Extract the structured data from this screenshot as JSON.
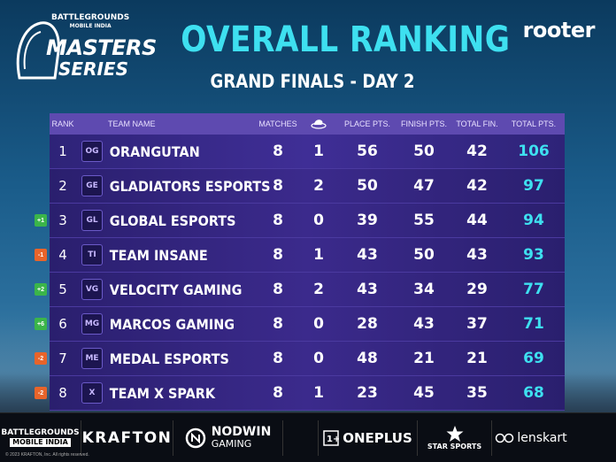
{
  "logo": {
    "brand_line1": "BATTLEGROUNDS",
    "brand_line2": "MOBILE INDIA",
    "masters": "MASTERS",
    "series": "SERIES"
  },
  "header": {
    "title": "OVERALL RANKING",
    "subtitle": "GRAND FINALS - DAY 2",
    "partner": "rooter"
  },
  "table": {
    "columns": {
      "rank": "RANK",
      "team": "TEAM NAME",
      "matches": "MATCHES",
      "chicken_icon": "chicken-dinner-icon",
      "place": "PLACE PTS.",
      "finish": "FINISH PTS.",
      "total_fin": "TOTAL FIN.",
      "total": "TOTAL PTS."
    },
    "rows": [
      {
        "rank": "1",
        "team": "ORANGUTAN",
        "logo": "OG",
        "change": "",
        "matches": "8",
        "wins": "1",
        "place": "56",
        "finish": "50",
        "total_fin": "42",
        "total": "106"
      },
      {
        "rank": "2",
        "team": "GLADIATORS ESPORTS",
        "logo": "GE",
        "change": "",
        "matches": "8",
        "wins": "2",
        "place": "50",
        "finish": "47",
        "total_fin": "42",
        "total": "97"
      },
      {
        "rank": "3",
        "team": "GLOBAL ESPORTS",
        "logo": "GL",
        "change": "+1",
        "matches": "8",
        "wins": "0",
        "place": "39",
        "finish": "55",
        "total_fin": "44",
        "total": "94"
      },
      {
        "rank": "4",
        "team": "TEAM INSANE",
        "logo": "TI",
        "change": "-1",
        "matches": "8",
        "wins": "1",
        "place": "43",
        "finish": "50",
        "total_fin": "43",
        "total": "93"
      },
      {
        "rank": "5",
        "team": "VELOCITY GAMING",
        "logo": "VG",
        "change": "+2",
        "matches": "8",
        "wins": "2",
        "place": "43",
        "finish": "34",
        "total_fin": "29",
        "total": "77"
      },
      {
        "rank": "6",
        "team": "MARCOS GAMING",
        "logo": "MG",
        "change": "+6",
        "matches": "8",
        "wins": "0",
        "place": "28",
        "finish": "43",
        "total_fin": "37",
        "total": "71"
      },
      {
        "rank": "7",
        "team": "MEDAL ESPORTS",
        "logo": "ME",
        "change": "-2",
        "matches": "8",
        "wins": "0",
        "place": "48",
        "finish": "21",
        "total_fin": "21",
        "total": "69"
      },
      {
        "rank": "8",
        "team": "TEAM X SPARK",
        "logo": "X",
        "change": "-2",
        "matches": "8",
        "wins": "1",
        "place": "23",
        "finish": "45",
        "total_fin": "35",
        "total": "68"
      }
    ]
  },
  "sponsors": {
    "bgmi_line1": "BATTLEGROUNDS",
    "bgmi_line2": "MOBILE INDIA",
    "krafton": "KRAFTON",
    "nodwin": "NODWIN",
    "nodwin_sub": "GAMING",
    "oneplus": "ONEPLUS",
    "star": "STAR SPORTS",
    "lenskart": "lenskart"
  },
  "copyright": "© 2023 KRAFTON, Inc. All rights reserved.",
  "colors": {
    "accent_cyan": "#3ee0f0",
    "header_purple": "#5e4ab0",
    "row_purple": "#3b2a8c",
    "up_green": "#3bb54a",
    "down_orange": "#e8642a"
  }
}
